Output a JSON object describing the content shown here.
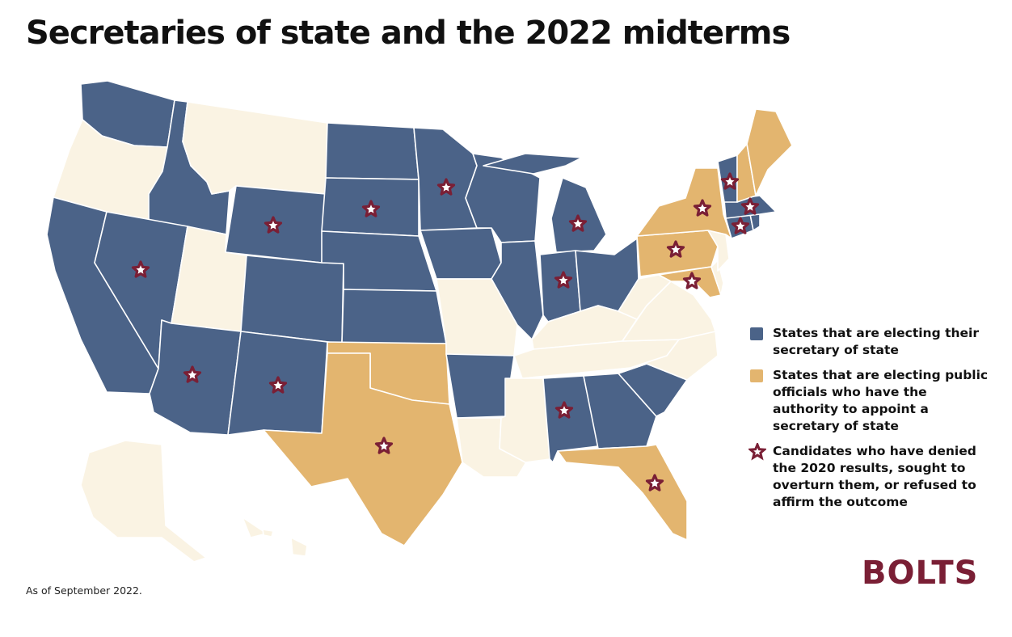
{
  "title": "Secretaries of state and the 2022 midterms",
  "colors": {
    "electing_sos": "#4b6388",
    "electing_appointer": "#e3b56f",
    "not_electing": "#faf3e3",
    "border": "#ffffff",
    "star": "#7a1f35",
    "text": "#111111"
  },
  "legend": [
    {
      "key": "electing_sos",
      "label": "States that are electing their secretary of state"
    },
    {
      "key": "electing_appointer",
      "label": "States that are electing public officials who have the authority to appoint a secretary of state"
    },
    {
      "key": "denier_star",
      "label": "Candidates who have denied the 2020 results, sought to overturn them, or refused to affirm the outcome"
    }
  ],
  "states": [
    {
      "abbr": "WA",
      "status": "electing_sos",
      "denier_candidate": false
    },
    {
      "abbr": "OR",
      "status": "not_electing",
      "denier_candidate": false
    },
    {
      "abbr": "CA",
      "status": "electing_sos",
      "denier_candidate": false
    },
    {
      "abbr": "ID",
      "status": "electing_sos",
      "denier_candidate": false
    },
    {
      "abbr": "NV",
      "status": "electing_sos",
      "denier_candidate": true
    },
    {
      "abbr": "MT",
      "status": "not_electing",
      "denier_candidate": false
    },
    {
      "abbr": "WY",
      "status": "electing_sos",
      "denier_candidate": true
    },
    {
      "abbr": "UT",
      "status": "not_electing",
      "denier_candidate": false
    },
    {
      "abbr": "AZ",
      "status": "electing_sos",
      "denier_candidate": true
    },
    {
      "abbr": "CO",
      "status": "electing_sos",
      "denier_candidate": false
    },
    {
      "abbr": "NM",
      "status": "electing_sos",
      "denier_candidate": true
    },
    {
      "abbr": "ND",
      "status": "electing_sos",
      "denier_candidate": false
    },
    {
      "abbr": "SD",
      "status": "electing_sos",
      "denier_candidate": true
    },
    {
      "abbr": "NE",
      "status": "electing_sos",
      "denier_candidate": false
    },
    {
      "abbr": "KS",
      "status": "electing_sos",
      "denier_candidate": false
    },
    {
      "abbr": "OK",
      "status": "electing_appointer",
      "denier_candidate": false
    },
    {
      "abbr": "TX",
      "status": "electing_appointer",
      "denier_candidate": true
    },
    {
      "abbr": "MN",
      "status": "electing_sos",
      "denier_candidate": true
    },
    {
      "abbr": "IA",
      "status": "electing_sos",
      "denier_candidate": false
    },
    {
      "abbr": "MO",
      "status": "not_electing",
      "denier_candidate": false
    },
    {
      "abbr": "AR",
      "status": "electing_sos",
      "denier_candidate": false
    },
    {
      "abbr": "LA",
      "status": "not_electing",
      "denier_candidate": false
    },
    {
      "abbr": "WI",
      "status": "electing_sos",
      "denier_candidate": false
    },
    {
      "abbr": "IL",
      "status": "electing_sos",
      "denier_candidate": false
    },
    {
      "abbr": "MI",
      "status": "electing_sos",
      "denier_candidate": true
    },
    {
      "abbr": "IN",
      "status": "electing_sos",
      "denier_candidate": true
    },
    {
      "abbr": "OH",
      "status": "electing_sos",
      "denier_candidate": false
    },
    {
      "abbr": "KY",
      "status": "not_electing",
      "denier_candidate": false
    },
    {
      "abbr": "TN",
      "status": "not_electing",
      "denier_candidate": false
    },
    {
      "abbr": "MS",
      "status": "not_electing",
      "denier_candidate": false
    },
    {
      "abbr": "AL",
      "status": "electing_sos",
      "denier_candidate": true
    },
    {
      "abbr": "GA",
      "status": "electing_sos",
      "denier_candidate": false
    },
    {
      "abbr": "FL",
      "status": "electing_appointer",
      "denier_candidate": true
    },
    {
      "abbr": "SC",
      "status": "electing_sos",
      "denier_candidate": false
    },
    {
      "abbr": "NC",
      "status": "not_electing",
      "denier_candidate": false
    },
    {
      "abbr": "VA",
      "status": "not_electing",
      "denier_candidate": false
    },
    {
      "abbr": "WV",
      "status": "not_electing",
      "denier_candidate": false
    },
    {
      "abbr": "PA",
      "status": "electing_appointer",
      "denier_candidate": true
    },
    {
      "abbr": "MD",
      "status": "electing_appointer",
      "denier_candidate": true
    },
    {
      "abbr": "DE",
      "status": "not_electing",
      "denier_candidate": false
    },
    {
      "abbr": "NJ",
      "status": "not_electing",
      "denier_candidate": false
    },
    {
      "abbr": "NY",
      "status": "electing_appointer",
      "denier_candidate": true
    },
    {
      "abbr": "CT",
      "status": "electing_sos",
      "denier_candidate": true
    },
    {
      "abbr": "RI",
      "status": "electing_sos",
      "denier_candidate": false
    },
    {
      "abbr": "MA",
      "status": "electing_sos",
      "denier_candidate": true
    },
    {
      "abbr": "VT",
      "status": "electing_sos",
      "denier_candidate": true
    },
    {
      "abbr": "NH",
      "status": "electing_appointer",
      "denier_candidate": false
    },
    {
      "abbr": "ME",
      "status": "electing_appointer",
      "denier_candidate": false
    },
    {
      "abbr": "AK",
      "status": "not_electing",
      "denier_candidate": false
    },
    {
      "abbr": "HI",
      "status": "not_electing",
      "denier_candidate": false
    }
  ],
  "footnote": "As of September 2022.",
  "logo": "BOLTS"
}
